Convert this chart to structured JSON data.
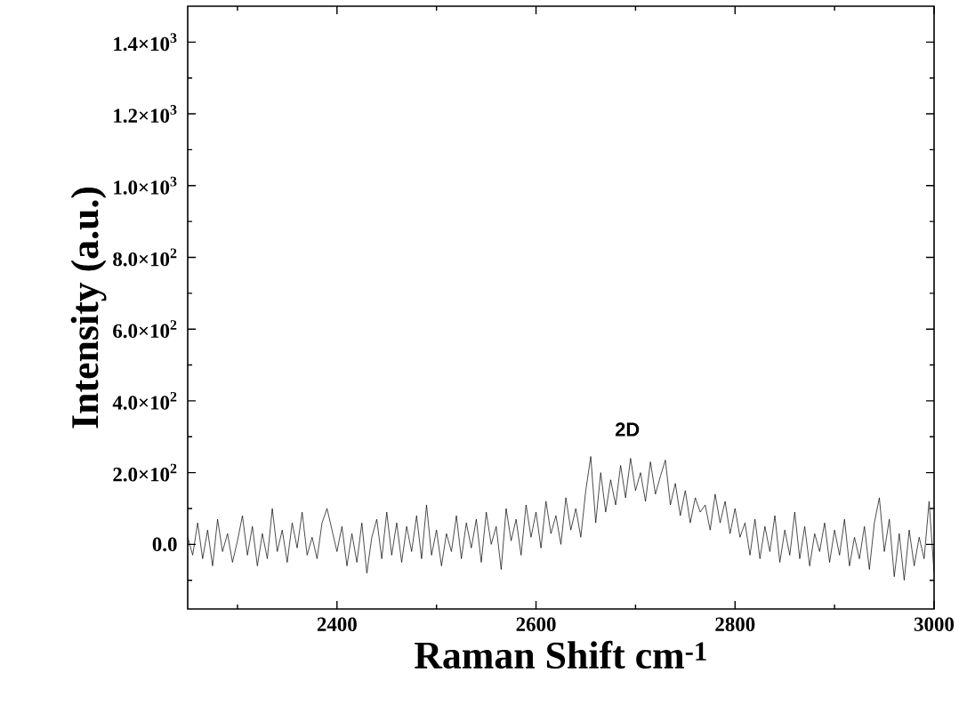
{
  "chart_data": {
    "type": "line",
    "xlabel": "Raman Shift cm$^{-1}$",
    "ylabel": "Intensity (a.u.)",
    "x": [
      2250,
      2255,
      2260,
      2265,
      2270,
      2275,
      2280,
      2285,
      2290,
      2295,
      2300,
      2305,
      2310,
      2315,
      2320,
      2325,
      2330,
      2335,
      2340,
      2345,
      2350,
      2355,
      2360,
      2365,
      2370,
      2375,
      2380,
      2385,
      2390,
      2395,
      2400,
      2405,
      2410,
      2415,
      2420,
      2425,
      2430,
      2435,
      2440,
      2445,
      2450,
      2455,
      2460,
      2465,
      2470,
      2475,
      2480,
      2485,
      2490,
      2495,
      2500,
      2505,
      2510,
      2515,
      2520,
      2525,
      2530,
      2535,
      2540,
      2545,
      2550,
      2555,
      2560,
      2565,
      2570,
      2575,
      2580,
      2585,
      2590,
      2595,
      2600,
      2605,
      2610,
      2615,
      2620,
      2625,
      2630,
      2635,
      2640,
      2645,
      2650,
      2655,
      2660,
      2665,
      2670,
      2675,
      2680,
      2685,
      2690,
      2695,
      2700,
      2705,
      2710,
      2715,
      2720,
      2725,
      2730,
      2735,
      2740,
      2745,
      2750,
      2755,
      2760,
      2765,
      2770,
      2775,
      2780,
      2785,
      2790,
      2795,
      2800,
      2805,
      2810,
      2815,
      2820,
      2825,
      2830,
      2835,
      2840,
      2845,
      2850,
      2855,
      2860,
      2865,
      2870,
      2875,
      2880,
      2885,
      2890,
      2895,
      2900,
      2905,
      2910,
      2915,
      2920,
      2925,
      2930,
      2935,
      2940,
      2945,
      2950,
      2955,
      2960,
      2965,
      2970,
      2975,
      2980,
      2985,
      2990,
      2995,
      3000
    ],
    "values": [
      20,
      -30,
      60,
      -40,
      40,
      -60,
      70,
      -20,
      30,
      -50,
      10,
      80,
      -30,
      50,
      -60,
      30,
      -40,
      100,
      -20,
      40,
      -50,
      60,
      -10,
      90,
      -30,
      20,
      -40,
      60,
      100,
      40,
      -20,
      50,
      -60,
      30,
      -50,
      60,
      -80,
      20,
      70,
      -40,
      90,
      -30,
      60,
      -50,
      50,
      -20,
      80,
      -40,
      110,
      -30,
      40,
      -60,
      30,
      -20,
      80,
      -40,
      60,
      -10,
      70,
      -50,
      90,
      0,
      50,
      -70,
      100,
      10,
      70,
      -30,
      110,
      20,
      90,
      -10,
      120,
      30,
      80,
      0,
      130,
      40,
      100,
      20,
      150,
      245,
      60,
      200,
      90,
      180,
      110,
      220,
      130,
      240,
      150,
      200,
      120,
      230,
      140,
      190,
      235,
      110,
      170,
      80,
      150,
      60,
      130,
      90,
      110,
      40,
      140,
      60,
      120,
      30,
      100,
      20,
      60,
      -30,
      70,
      -40,
      50,
      -20,
      80,
      -50,
      40,
      -30,
      90,
      -40,
      50,
      -60,
      30,
      -20,
      60,
      -50,
      40,
      -30,
      70,
      -60,
      20,
      -40,
      50,
      -70,
      60,
      130,
      -20,
      70,
      -90,
      30,
      -100,
      40,
      -60,
      20,
      -40,
      120,
      -80
    ],
    "color": "#000000",
    "marker": "none",
    "line_style": "solid",
    "xlim": [
      2250,
      3000
    ],
    "ylim": [
      -180,
      1500
    ],
    "xticks": [
      {
        "value": 2300,
        "label": null
      },
      2400,
      {
        "value": 2500,
        "label": null
      },
      2600,
      {
        "value": 2700,
        "label": null
      },
      2800,
      {
        "value": 2900,
        "label": null
      },
      3000
    ],
    "yticks": [
      {
        "value": -100,
        "label": null
      },
      {
        "value": 0,
        "label": "0.0"
      },
      {
        "value": 100,
        "label": null
      },
      {
        "value": 200,
        "label": "2.0×10$^{2}$"
      },
      {
        "value": 300,
        "label": null
      },
      {
        "value": 400,
        "label": "4.0×10$^{2}$"
      },
      {
        "value": 500,
        "label": null
      },
      {
        "value": 600,
        "label": "6.0×10$^{2}$"
      },
      {
        "value": 700,
        "label": null
      },
      {
        "value": 800,
        "label": "8.0×10$^{2}$"
      },
      {
        "value": 900,
        "label": null
      },
      {
        "value": 1000,
        "label": "1.0×10$^{3}$"
      },
      {
        "value": 1100,
        "label": null
      },
      {
        "value": 1200,
        "label": "1.2×10$^{3}$"
      },
      {
        "value": 1300,
        "label": null
      },
      {
        "value": 1400,
        "label": "1.4×10$^{3}$"
      }
    ],
    "annotations": [
      "2D"
    ]
  }
}
